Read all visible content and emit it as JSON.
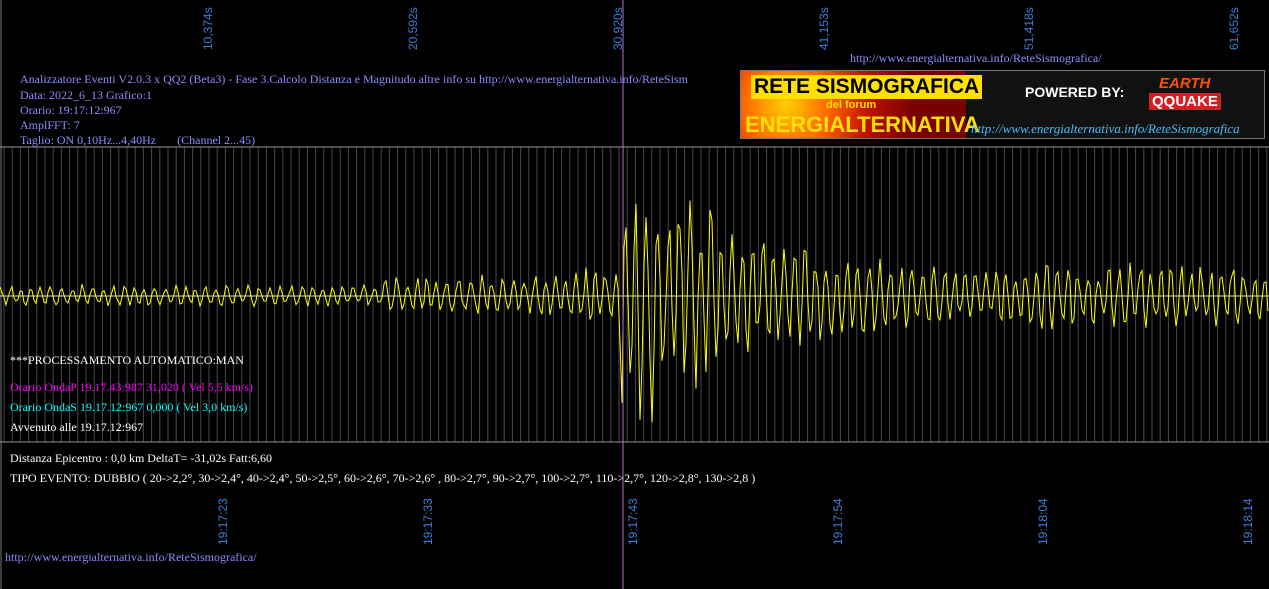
{
  "top_url": "http://www.energialternativa.info/ReteSismografica/",
  "top_ticks": [
    "10,374s",
    "20,592s",
    "30,920s",
    "41,153s",
    "51,418s",
    "61,652s"
  ],
  "bottom_ticks": [
    "19:17:23",
    "19:17:33",
    "19:17:43",
    "19:17:54",
    "19:18:04",
    "19:18:14"
  ],
  "info": [
    "Analizzatore Eventi V2.0.3 x QQ2 (Beta3) - Fase 3.Calcolo Distanza e Magnitudo altre info su http://www.energialternativa.info/ReteSism",
    "Data: 2022_6_13 Grafico:1",
    "Orario: 19:17:12:967",
    "AmplFFT: 7",
    "Taglio: ON 0,10Hz...4,40Hz       (Channel 2...45)"
  ],
  "logo": {
    "title": "RETE SISMOGRAFICA",
    "subtitle": "del forum",
    "name": "ENERGIALTERNATIVA",
    "powered": "POWERED BY:",
    "earth": "EARTH",
    "quake": "QQUAKE",
    "url": "http://www.energialternativa.info/ReteSismografica"
  },
  "processing": {
    "mode": "***PROCESSAMENTO AUTOMATICO:MAN",
    "onda_p": "Orario OndaP 19.17.43:987  31,020 ( Vel 5,5 km/s)",
    "onda_s": "Orario OndaS 19.17.12:967  0,000 ( Vel 3,0 km/s)",
    "avvenuto": "Avvenuto alle 19.17.12:967"
  },
  "result": {
    "distance": "Distanza Epicentro : 0,0 km DeltaT= -31,02s  Fatt:6,60",
    "tipo": "TIPO EVENTO: DUBBIO ( 20->2,2°, 30->2,4°, 40->2,4°, 50->2,5°, 60->2,6°, 70->2,6° , 80->2,7°, 90->2,7°, 100->2,7°, 110->2,7°, 120->2,8°, 130->2,8 )"
  },
  "footer_url": "http://www.energialternativa.info/ReteSismografica/"
}
